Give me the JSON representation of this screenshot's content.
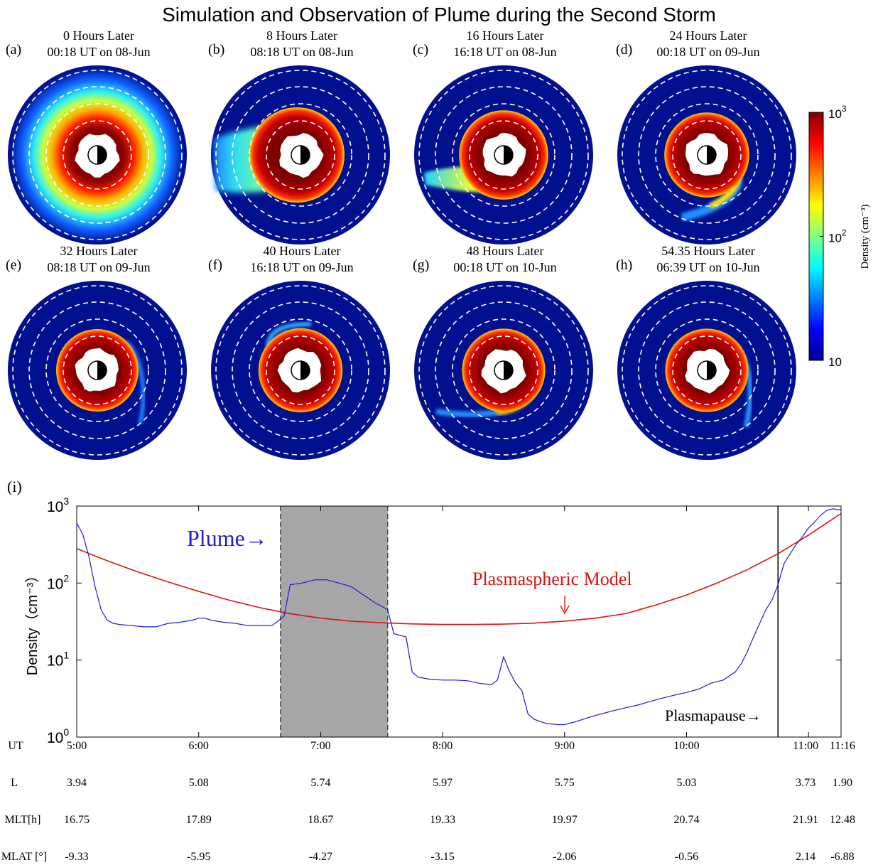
{
  "figure_title": "Simulation and Observation of Plume during the Second Storm",
  "colors": {
    "background_blue": "#00108f",
    "plume_line": "#1a1ad6",
    "model_line": "#e01010",
    "shade": "#a6a6a6"
  },
  "panels": [
    {
      "tag": "(a)",
      "hours": "0  Hours Later",
      "time": "00:18 UT on 08-Jun",
      "plasmapause_level": 0.78
    },
    {
      "tag": "(b)",
      "hours": "8  Hours Later",
      "time": "08:18 UT on 08-Jun",
      "plasmapause_level": 0.45
    },
    {
      "tag": "(c)",
      "hours": "16  Hours Later",
      "time": "16:18 UT on 08-Jun",
      "plasmapause_level": 0.38
    },
    {
      "tag": "(d)",
      "hours": "24  Hours Later",
      "time": "00:18 UT on 09-Jun",
      "plasmapause_level": 0.33
    },
    {
      "tag": "(e)",
      "hours": "32  Hours Later",
      "time": "08:18 UT on 09-Jun",
      "plasmapause_level": 0.3
    },
    {
      "tag": "(f)",
      "hours": "40  Hours Later",
      "time": "16:18 UT on 09-Jun",
      "plasmapause_level": 0.32
    },
    {
      "tag": "(g)",
      "hours": "48  Hours Later",
      "time": "00:18 UT on 10-Jun",
      "plasmapause_level": 0.31
    },
    {
      "tag": "(h)",
      "hours": "54.35  Hours Later",
      "time": "06:39 UT on 10-Jun",
      "plasmapause_level": 0.31
    }
  ],
  "colorbar": {
    "label": "Density (cm⁻³)",
    "ticks": [
      {
        "base": "10",
        "exp": "3",
        "value": 1000
      },
      {
        "base": "10",
        "exp": "2",
        "value": 100
      },
      {
        "base": "10",
        "exp": "",
        "value": 10
      }
    ]
  },
  "chart_data": {
    "type": "line",
    "panel_tag": "(i)",
    "ylabel": "Density（cm⁻³）",
    "yscale": "log",
    "ylim": [
      1,
      1000
    ],
    "xlim": [
      5.0,
      11.267
    ],
    "y_ticks": [
      {
        "base": "10",
        "exp": "0",
        "value": 1
      },
      {
        "base": "10",
        "exp": "1",
        "value": 10
      },
      {
        "base": "10",
        "exp": "2",
        "value": 100
      },
      {
        "base": "10",
        "exp": "3",
        "value": 1000
      }
    ],
    "shaded_region": [
      6.67,
      7.55
    ],
    "plasmapause_time": 10.75,
    "annotations": {
      "plume": "Plume→",
      "model": "Plasmaspheric Model",
      "plasmapause": "Plasmapause→"
    },
    "series": [
      {
        "name": "Plume",
        "x": [
          5.0,
          5.05,
          5.1,
          5.15,
          5.2,
          5.25,
          5.3,
          5.35,
          5.45,
          5.55,
          5.65,
          5.75,
          5.85,
          5.95,
          6.0,
          6.05,
          6.1,
          6.2,
          6.3,
          6.4,
          6.5,
          6.6,
          6.65,
          6.7,
          6.75,
          6.85,
          6.95,
          7.05,
          7.15,
          7.25,
          7.35,
          7.45,
          7.5,
          7.55,
          7.6,
          7.65,
          7.7,
          7.75,
          7.8,
          7.9,
          8.0,
          8.1,
          8.2,
          8.3,
          8.4,
          8.45,
          8.5,
          8.55,
          8.6,
          8.65,
          8.7,
          8.75,
          8.85,
          8.95,
          9.0,
          9.1,
          9.2,
          9.3,
          9.4,
          9.5,
          9.6,
          9.7,
          9.8,
          9.9,
          10.0,
          10.1,
          10.2,
          10.3,
          10.4,
          10.45,
          10.5,
          10.55,
          10.6,
          10.65,
          10.7,
          10.75,
          10.8,
          10.85,
          10.9,
          10.95,
          11.0,
          11.05,
          11.1,
          11.15,
          11.2,
          11.267
        ],
        "y": [
          600,
          430,
          220,
          90,
          45,
          33,
          30,
          29,
          28,
          27,
          27,
          30,
          31,
          33,
          35,
          35,
          33,
          31,
          30,
          28,
          28,
          28,
          32,
          37,
          95,
          100,
          110,
          110,
          100,
          90,
          70,
          55,
          50,
          45,
          22,
          21,
          20,
          7,
          6,
          5.6,
          5.5,
          5.5,
          5.4,
          5,
          4.8,
          5.5,
          11,
          7,
          5,
          4,
          2,
          1.7,
          1.5,
          1.45,
          1.45,
          1.6,
          1.8,
          2.0,
          2.2,
          2.4,
          2.6,
          2.9,
          3.2,
          3.5,
          3.8,
          4.2,
          5,
          5.5,
          7,
          9,
          13,
          20,
          30,
          45,
          60,
          95,
          180,
          240,
          320,
          400,
          520,
          620,
          760,
          880,
          920,
          890
        ]
      },
      {
        "name": "Plasmaspheric Model",
        "x": [
          5.0,
          5.25,
          5.5,
          5.75,
          6.0,
          6.25,
          6.5,
          6.75,
          7.0,
          7.25,
          7.5,
          7.75,
          8.0,
          8.25,
          8.5,
          8.75,
          9.0,
          9.25,
          9.5,
          9.75,
          10.0,
          10.25,
          10.5,
          10.75,
          11.0,
          11.267
        ],
        "y": [
          280,
          195,
          140,
          103,
          78,
          60,
          48,
          40,
          35,
          32,
          30.5,
          29.5,
          29,
          29,
          29.3,
          30.2,
          32,
          35,
          40,
          52,
          70,
          100,
          150,
          240,
          420,
          800
        ]
      }
    ]
  },
  "orbit_table": {
    "rows": [
      {
        "label": "UT",
        "values": [
          "5:00",
          "6:00",
          "7:00",
          "8:00",
          "9:00",
          "10:00",
          "11:00",
          "11:16"
        ]
      },
      {
        "label": "L",
        "values": [
          "3.94",
          "5.08",
          "5.74",
          "5.97",
          "5.75",
          "5.03",
          "3.73",
          "1.90"
        ]
      },
      {
        "label": "MLT[h]",
        "values": [
          "16.75",
          "17.89",
          "18.67",
          "19.33",
          "19.97",
          "20.74",
          "21.91",
          "12.48"
        ]
      },
      {
        "label": "MLAT [°]",
        "values": [
          "-9.33",
          "-5.95",
          "-4.27",
          "-3.15",
          "-2.06",
          "-0.56",
          "2.14",
          "-6.88"
        ]
      }
    ],
    "times": [
      5.0,
      6.0,
      7.0,
      8.0,
      9.0,
      10.0,
      11.0,
      11.267
    ]
  }
}
